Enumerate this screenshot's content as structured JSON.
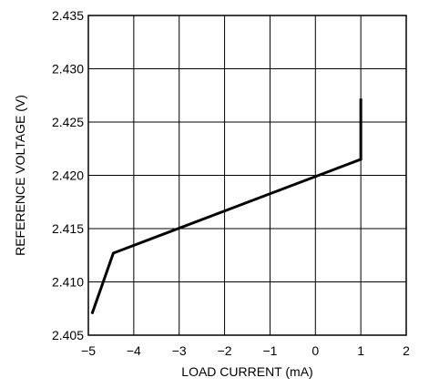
{
  "chart_data": {
    "type": "line",
    "title": "",
    "xlabel": "LOAD CURRENT (mA)",
    "ylabel": "REFERENCE VOLTAGE (V)",
    "xlim": [
      -5,
      2
    ],
    "ylim": [
      2.405,
      2.435
    ],
    "xticks": [
      -5,
      -4,
      -3,
      -2,
      -1,
      0,
      1,
      2
    ],
    "xtick_labels": [
      "−5",
      "−4",
      "−3",
      "−2",
      "−1",
      "0",
      "1",
      "2"
    ],
    "yticks": [
      2.405,
      2.41,
      2.415,
      2.42,
      2.425,
      2.43,
      2.435
    ],
    "ytick_labels": [
      "2.405",
      "2.410",
      "2.415",
      "2.420",
      "2.425",
      "2.430",
      "2.435"
    ],
    "grid": true,
    "legend": "none",
    "series": [
      {
        "color": "#000000",
        "x": [
          -4.92,
          -4.45,
          1.0,
          1.0
        ],
        "y": [
          2.407,
          2.4127,
          2.4215,
          2.4272
        ]
      }
    ]
  }
}
